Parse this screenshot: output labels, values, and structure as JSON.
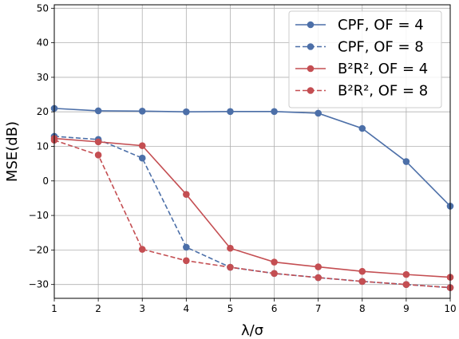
{
  "chart_data": {
    "type": "line",
    "xlabel": "λ/σ",
    "ylabel": "MSE(dB)",
    "xlim": [
      1,
      10
    ],
    "ylim": [
      -34,
      51
    ],
    "xticks": [
      1,
      2,
      3,
      4,
      5,
      6,
      7,
      8,
      9,
      10
    ],
    "yticks": [
      -30,
      -20,
      -10,
      0,
      10,
      20,
      30,
      40,
      50
    ],
    "grid": true,
    "legend_position": "top-right",
    "x": [
      1,
      2,
      3,
      4,
      5,
      6,
      7,
      8,
      9,
      10
    ],
    "series": [
      {
        "name": "CPF, OF = 4",
        "color": "#4c6fa8",
        "dash": "solid",
        "values": [
          21.0,
          20.3,
          20.2,
          20.0,
          20.1,
          20.1,
          19.6,
          15.2,
          5.6,
          -7.3
        ]
      },
      {
        "name": "CPF, OF = 8",
        "color": "#4c6fa8",
        "dash": "dashed",
        "values": [
          12.9,
          12.0,
          6.6,
          -19.2,
          -25.0,
          -26.8,
          -28.0,
          -29.1,
          -30.0,
          -30.9
        ]
      },
      {
        "name": "B²R², OF = 4",
        "color": "#c44e52",
        "dash": "solid",
        "values": [
          12.3,
          11.3,
          10.2,
          -3.9,
          -19.5,
          -23.5,
          -24.9,
          -26.2,
          -27.1,
          -27.9
        ]
      },
      {
        "name": "B²R², OF = 8",
        "color": "#c44e52",
        "dash": "dashed",
        "values": [
          11.8,
          7.5,
          -19.8,
          -23.1,
          -25.0,
          -26.8,
          -28.0,
          -29.1,
          -30.0,
          -30.9
        ]
      }
    ]
  }
}
